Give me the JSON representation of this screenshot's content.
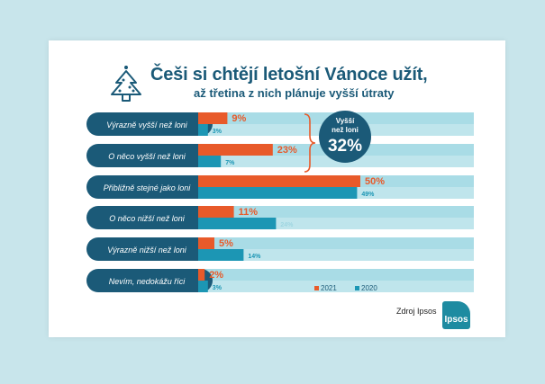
{
  "header": {
    "title": "Češi si chtějí letošní Vánoce užít,",
    "subtitle": "až třetina z nich plánuje vyšší útraty",
    "icon": "christmas-tree-icon"
  },
  "callout": {
    "label_line1": "Vyšší",
    "label_line2": "než loni",
    "value": "32%"
  },
  "footer": {
    "source": "Zdroj Ipsos",
    "logo_text": "Ipsos"
  },
  "colors": {
    "series_2021": "#e85a2a",
    "series_2020": "#1c96b4",
    "track_light": "#a9dce6",
    "label_pill": "#1b5a78",
    "text_dark": "#1b5a78"
  },
  "chart_data": {
    "type": "bar",
    "orientation": "horizontal",
    "categories": [
      "Výrazně vyšší než loni",
      "O něco vyšší než loni",
      "Přibližně stejné jako loni",
      "O něco nižší než loni",
      "Výrazně nižší než loni",
      "Nevím, nedokážu říci"
    ],
    "series": [
      {
        "name": "2021",
        "values": [
          9,
          23,
          50,
          11,
          5,
          2
        ],
        "labels": [
          "9%",
          "23%",
          "50%",
          "11%",
          "5%",
          "2%"
        ]
      },
      {
        "name": "2020",
        "values": [
          3,
          7,
          49,
          24,
          14,
          3
        ],
        "labels": [
          "3%",
          "7%",
          "49%",
          "24%",
          "14%",
          "3%"
        ]
      }
    ],
    "xlim": [
      0,
      85
    ],
    "legend": "bottom-right"
  }
}
